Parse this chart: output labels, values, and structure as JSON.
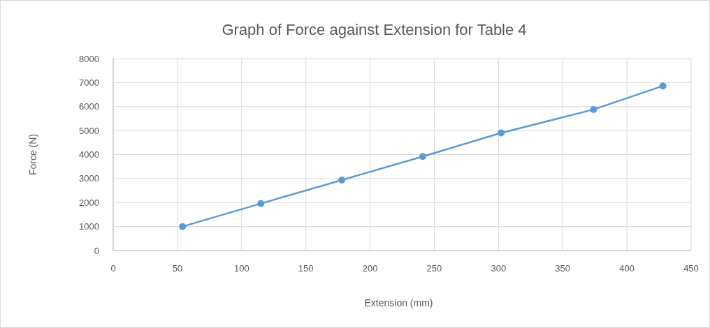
{
  "chart_data": {
    "type": "line",
    "title": "Graph of Force against Extension for Table 4",
    "xlabel": "Extension (mm)",
    "ylabel": "Force (N)",
    "x": [
      54,
      115,
      178,
      241,
      302,
      374,
      428
    ],
    "series": [
      {
        "color": "#5b9bd5",
        "values": [
          1000,
          1960,
          2940,
          3920,
          4900,
          5880,
          6860
        ]
      }
    ],
    "xlim": [
      0,
      450
    ],
    "xticks": [
      0,
      50,
      100,
      150,
      200,
      250,
      300,
      350,
      400,
      450
    ],
    "ylim": [
      0,
      8000
    ],
    "yticks": [
      0,
      1000,
      2000,
      3000,
      4000,
      5000,
      6000,
      7000,
      8000
    ],
    "grid": true,
    "marker": "circle",
    "line_style": "solid"
  }
}
